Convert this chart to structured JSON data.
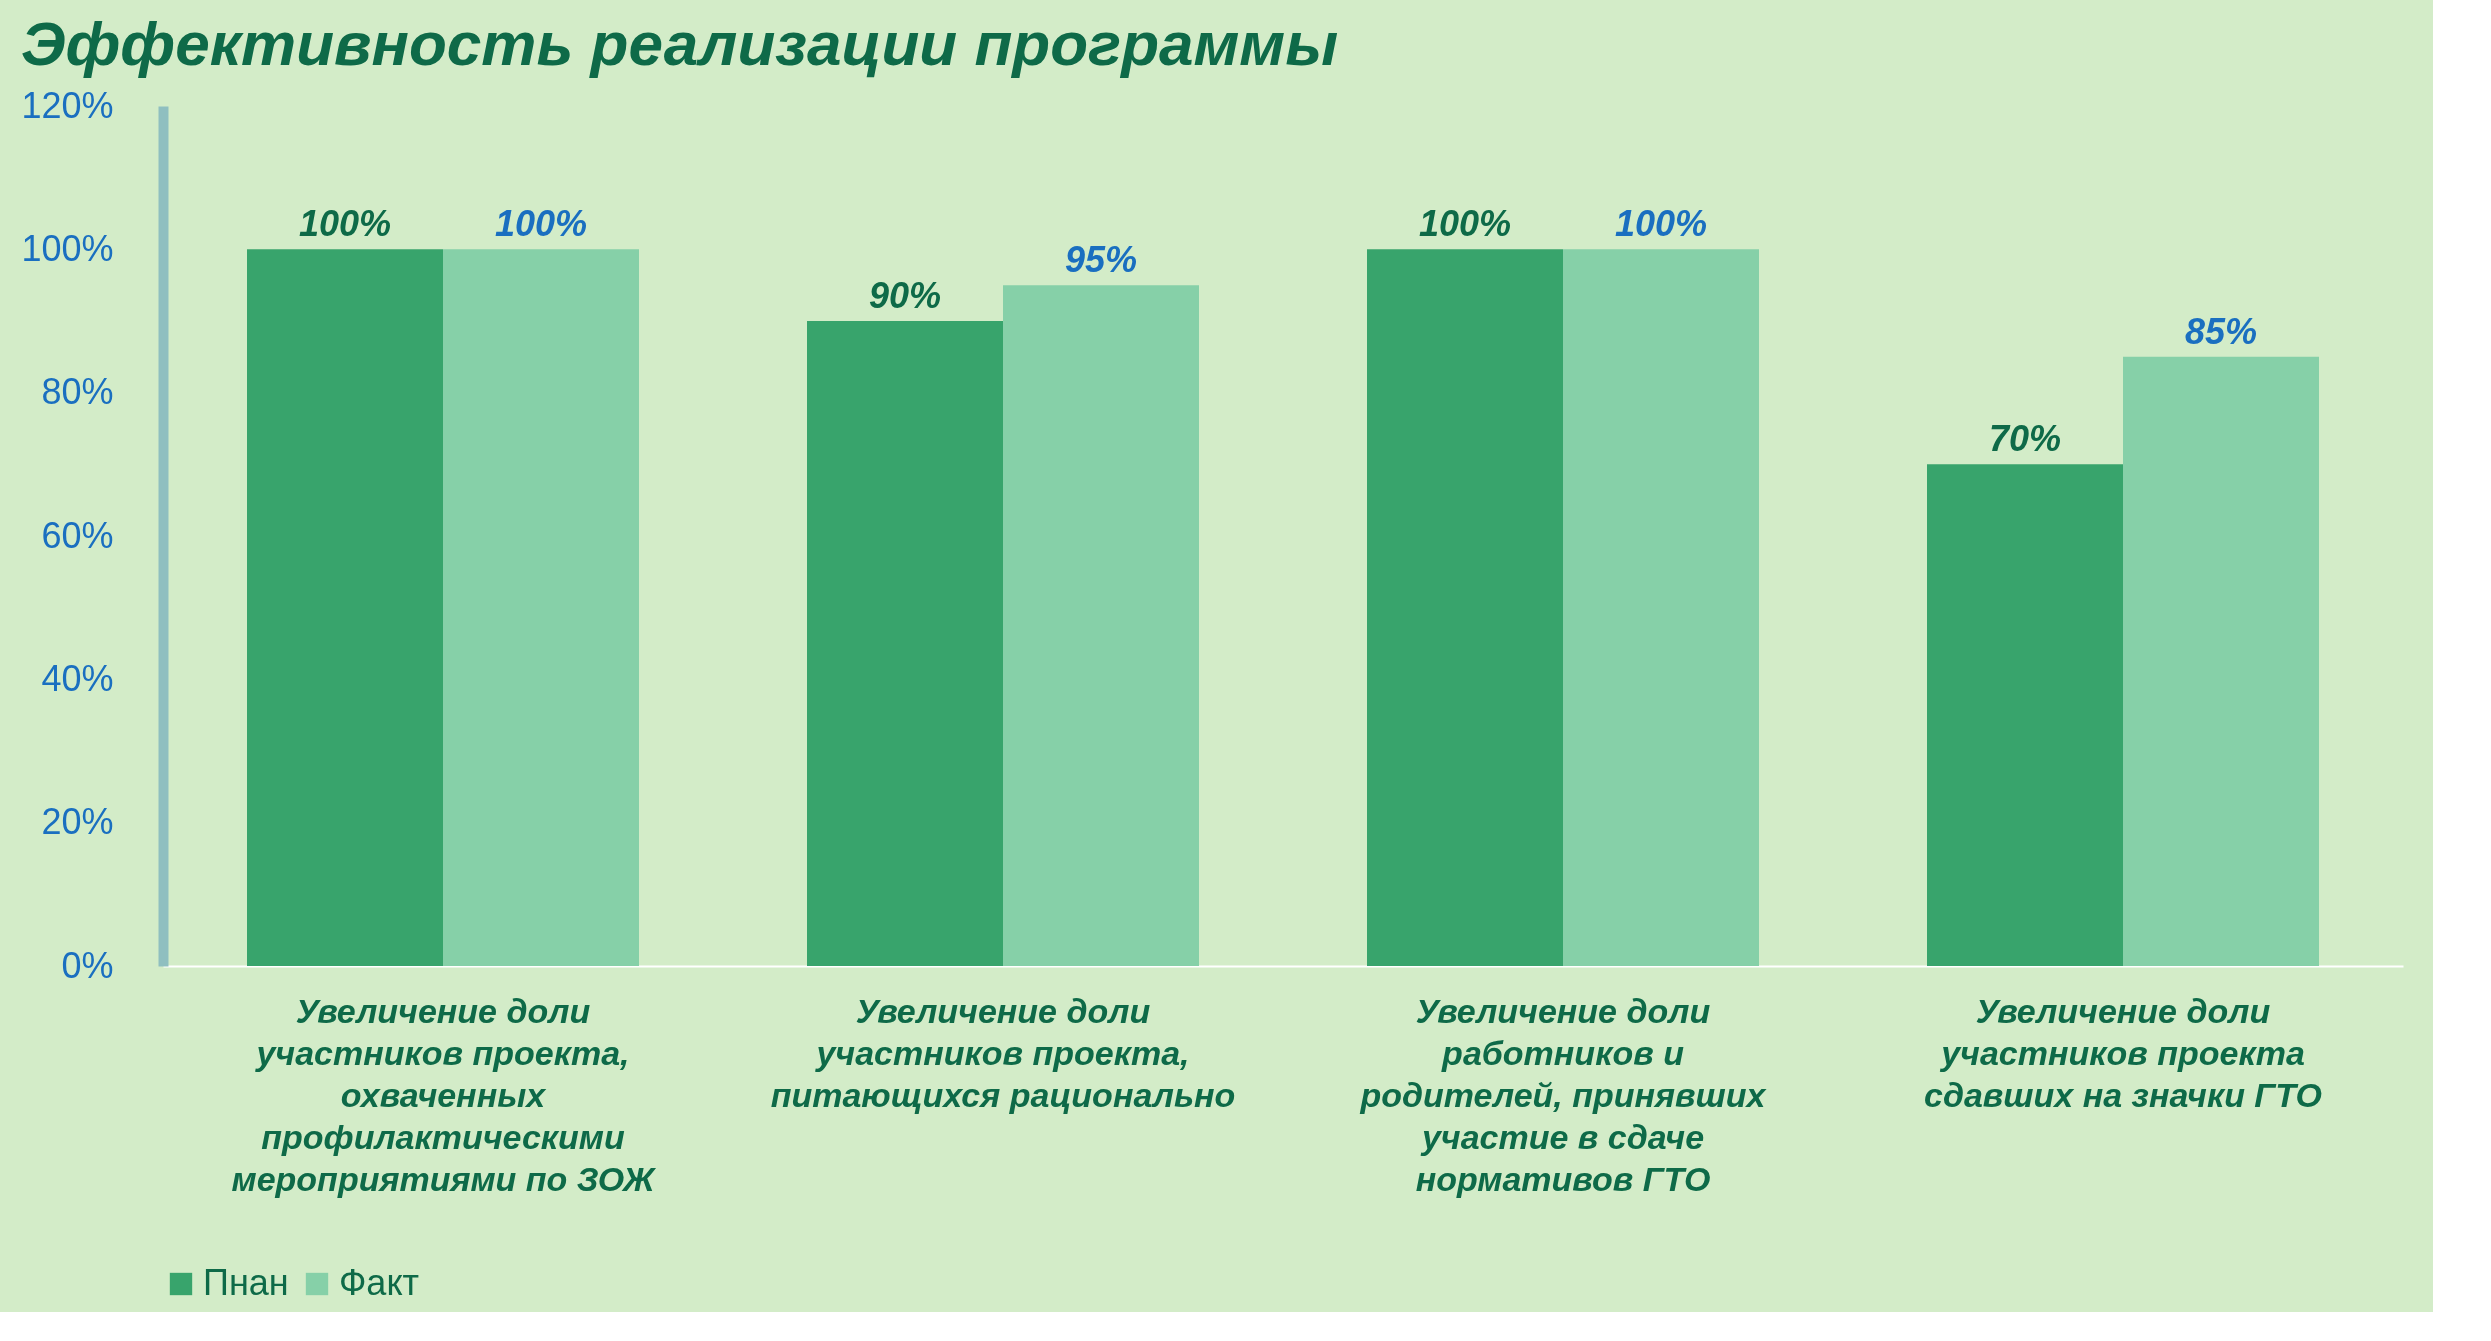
{
  "chart_data": {
    "type": "bar",
    "title": "Эффективность реализации программы",
    "categories": [
      "Увеличение доли участников проекта, охваченных профилактическими мероприятиями по ЗОЖ",
      "Увеличение доли участников проекта, питающихся рационально",
      "Увеличение доли работников и родителей, принявших участие в сдаче нормативов ГТО",
      "Увеличение доли участников проекта сдавших на значки ГТО"
    ],
    "series": [
      {
        "name": "Пнан",
        "color": "#38a46c",
        "values": [
          100,
          90,
          100,
          70
        ],
        "value_labels": [
          "100%",
          "90%",
          "100%",
          "70%"
        ]
      },
      {
        "name": "Факт",
        "color": "#86d0a8",
        "values": [
          100,
          95,
          100,
          85
        ],
        "value_labels": [
          "100%",
          "95%",
          "100%",
          "85%"
        ]
      }
    ],
    "ylim": [
      0,
      120
    ],
    "yticks": [
      {
        "value": 0,
        "label": "0%"
      },
      {
        "value": 20,
        "label": "20%"
      },
      {
        "value": 40,
        "label": "40%"
      },
      {
        "value": 60,
        "label": "60%"
      },
      {
        "value": 80,
        "label": "80%"
      },
      {
        "value": 100,
        "label": "100%"
      },
      {
        "value": 120,
        "label": "120%"
      }
    ],
    "grid": false,
    "legend": "bottom"
  }
}
